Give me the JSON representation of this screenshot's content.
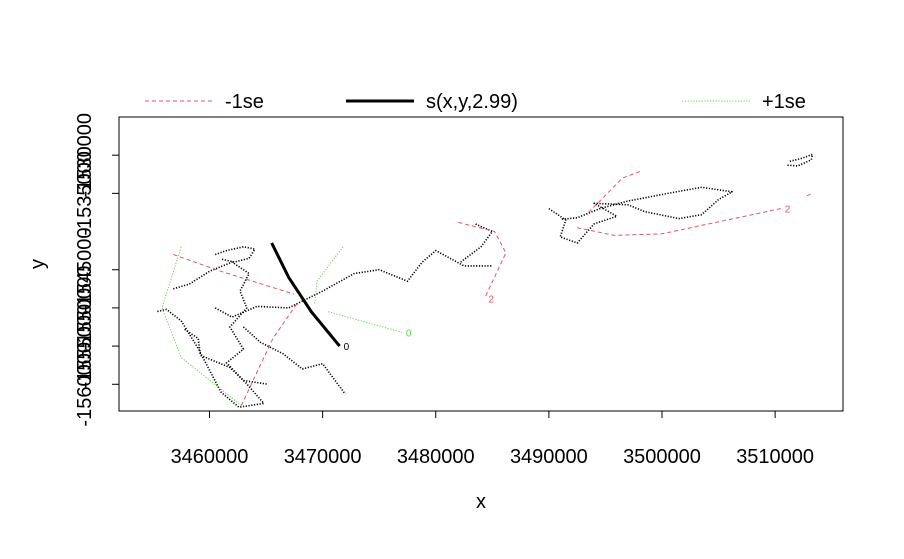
{
  "chart_data": {
    "type": "line",
    "title": "",
    "xlabel": "x",
    "ylabel": "y",
    "xlim": [
      3452000,
      3516000
    ],
    "ylim": [
      -1563500,
      -1525000
    ],
    "x_ticks": [
      3460000,
      3470000,
      3480000,
      3490000,
      3500000,
      3510000
    ],
    "x_tick_labels": [
      "3460000",
      "3470000",
      "3480000",
      "3490000",
      "3500000",
      "3510000"
    ],
    "y_ticks": [
      -1530000,
      -1535000,
      -1545000,
      -1550000,
      -1555000,
      -1560000
    ],
    "y_tick_labels": [
      "-1530000",
      "-1535000",
      "-1545000",
      "-1550000",
      "-1555000",
      "-1560000"
    ],
    "grid": false,
    "legend_position": "top",
    "legend": [
      {
        "label": "-1se",
        "color": "#DF536B",
        "style": "dashed"
      },
      {
        "label": "s(x,y,2.99)",
        "color": "#000000",
        "style": "solid"
      },
      {
        "label": "+1se",
        "color": "#61D04F",
        "style": "dotted"
      }
    ],
    "series": [
      {
        "name": "s(x,y,2.99)",
        "color": "#000000",
        "style": "solid",
        "contours": [
          {
            "level": "0",
            "points": [
              [
                3465500,
                -1541500
              ],
              [
                3467000,
                -1546000
              ],
              [
                3469000,
                -1550500
              ],
              [
                3471500,
                -1555000
              ]
            ]
          }
        ]
      },
      {
        "name": "-1se",
        "color": "#DF536B",
        "style": "dashed",
        "contours": [
          {
            "level": "",
            "points": [
              [
                3456800,
                -1543000
              ],
              [
                3461000,
                -1545200
              ],
              [
                3467500,
                -1548200
              ]
            ]
          },
          {
            "level": "",
            "points": [
              [
                3467700,
                -1549500
              ],
              [
                3465600,
                -1554000
              ],
              [
                3462800,
                -1562800
              ]
            ]
          },
          {
            "level": "2",
            "points": [
              [
                3482000,
                -1538800
              ],
              [
                3485200,
                -1540000
              ],
              [
                3486200,
                -1542800
              ],
              [
                3484300,
                -1548800
              ]
            ]
          },
          {
            "level": "",
            "points": [
              [
                3493500,
                -1537500
              ],
              [
                3496500,
                -1533000
              ],
              [
                3498300,
                -1532000
              ]
            ]
          },
          {
            "level": "2",
            "points": [
              [
                3492500,
                -1539500
              ],
              [
                3495800,
                -1540500
              ],
              [
                3500000,
                -1540300
              ],
              [
                3510500,
                -1537000
              ]
            ]
          },
          {
            "level": "",
            "points": [
              [
                3512800,
                -1535300
              ],
              [
                3513300,
                -1535000
              ]
            ]
          }
        ]
      },
      {
        "name": "+1se",
        "color": "#61D04F",
        "style": "dotted",
        "contours": [
          {
            "level": "",
            "points": [
              [
                3457500,
                -1542000
              ],
              [
                3455800,
                -1550000
              ],
              [
                3457500,
                -1556500
              ],
              [
                3463000,
                -1563000
              ]
            ]
          },
          {
            "level": "0",
            "points": [
              [
                3470500,
                -1550500
              ],
              [
                3477000,
                -1553200
              ]
            ]
          },
          {
            "level": "",
            "points": [
              [
                3471800,
                -1542000
              ],
              [
                3469500,
                -1546500
              ],
              [
                3469300,
                -1549500
              ]
            ]
          }
        ]
      },
      {
        "name": "",
        "color": "#000000",
        "style": "dotted",
        "shapes": [
          [
            [
              3456800,
              -1547500
            ],
            [
              3458200,
              -1546900
            ],
            [
              3460000,
              -1545200
            ],
            [
              3462000,
              -1544000
            ],
            [
              3463500,
              -1545500
            ],
            [
              3462700,
              -1547800
            ],
            [
              3463300,
              -1550000
            ],
            [
              3461800,
              -1552500
            ],
            [
              3463000,
              -1555400
            ],
            [
              3461500,
              -1557200
            ],
            [
              3463200,
              -1559800
            ],
            [
              3464800,
              -1562500
            ],
            [
              3462600,
              -1563000
            ],
            [
              3461000,
              -1561000
            ],
            [
              3459000,
              -1555300
            ],
            [
              3457500,
              -1551700
            ],
            [
              3456200,
              -1550200
            ],
            [
              3455300,
              -1550500
            ]
          ],
          [
            [
              3460500,
              -1543000
            ],
            [
              3461500,
              -1542500
            ],
            [
              3463000,
              -1542000
            ],
            [
              3464000,
              -1542300
            ],
            [
              3463500,
              -1543500
            ],
            [
              3462200,
              -1544000
            ],
            [
              3461000,
              -1543600
            ]
          ],
          [
            [
              3460500,
              -1550000
            ],
            [
              3462000,
              -1551200
            ],
            [
              3464200,
              -1549800
            ],
            [
              3467000,
              -1550000
            ],
            [
              3470000,
              -1547800
            ],
            [
              3472800,
              -1545500
            ],
            [
              3475000,
              -1545000
            ],
            [
              3477500,
              -1546500
            ],
            [
              3478800,
              -1544000
            ],
            [
              3480000,
              -1542500
            ],
            [
              3482500,
              -1544500
            ],
            [
              3485000,
              -1544500
            ]
          ],
          [
            [
              3463000,
              -1552500
            ],
            [
              3464500,
              -1554500
            ],
            [
              3466500,
              -1556000
            ],
            [
              3468200,
              -1558000
            ],
            [
              3470000,
              -1557300
            ],
            [
              3472000,
              -1561300
            ]
          ],
          [
            [
              3457800,
              -1552800
            ],
            [
              3459000,
              -1554000
            ],
            [
              3459200,
              -1556200
            ],
            [
              3461800,
              -1557800
            ],
            [
              3463000,
              -1559500
            ],
            [
              3465200,
              -1560000
            ]
          ],
          [
            [
              3482200,
              -1544000
            ],
            [
              3484000,
              -1542000
            ],
            [
              3485000,
              -1540000
            ],
            [
              3483500,
              -1539000
            ]
          ],
          [
            [
              3490000,
              -1537000
            ],
            [
              3491500,
              -1538500
            ],
            [
              3491000,
              -1540700
            ],
            [
              3492500,
              -1541500
            ],
            [
              3494000,
              -1539000
            ],
            [
              3496000,
              -1538000
            ],
            [
              3494000,
              -1536300
            ],
            [
              3497000,
              -1536500
            ],
            [
              3498500,
              -1537400
            ],
            [
              3501500,
              -1538300
            ],
            [
              3503500,
              -1537800
            ],
            [
              3505000,
              -1535800
            ],
            [
              3506200,
              -1534800
            ],
            [
              3503500,
              -1534200
            ],
            [
              3500500,
              -1535000
            ],
            [
              3497000,
              -1536000
            ],
            [
              3494500,
              -1537000
            ],
            [
              3492500,
              -1538200
            ],
            [
              3491000,
              -1538400
            ]
          ],
          [
            [
              3511300,
              -1530800
            ],
            [
              3512400,
              -1530400
            ],
            [
              3513300,
              -1529900
            ],
            [
              3513200,
              -1530600
            ],
            [
              3512000,
              -1531400
            ],
            [
              3511000,
              -1531300
            ]
          ]
        ]
      }
    ]
  }
}
